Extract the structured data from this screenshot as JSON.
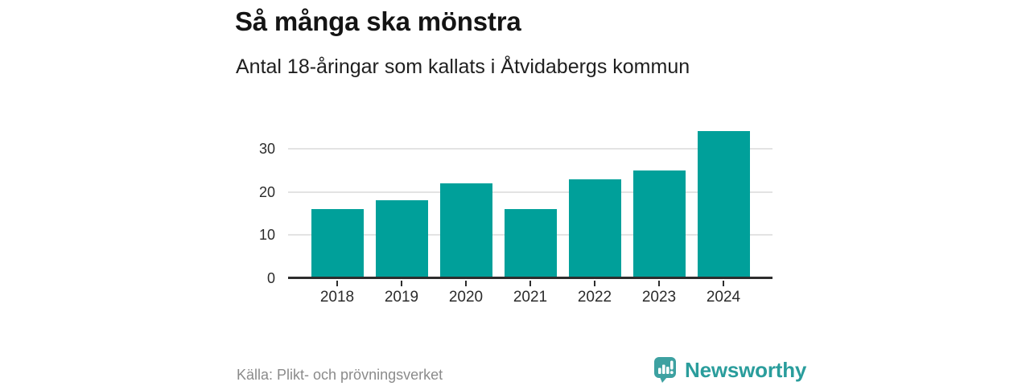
{
  "chart_data": {
    "type": "bar",
    "title": "Så många ska mönstra",
    "subtitle": "Antal 18-åringar som kallats i Åtvidabergs kommun",
    "categories": [
      "2018",
      "2019",
      "2020",
      "2021",
      "2022",
      "2023",
      "2024"
    ],
    "values": [
      16,
      18,
      22,
      16,
      23,
      25,
      34
    ],
    "xlabel": "",
    "ylabel": "",
    "yticks": [
      0,
      10,
      20,
      30
    ],
    "ylim": [
      0,
      36.5
    ],
    "grid": true,
    "legend": false,
    "legend_position": "none",
    "bar_color": "#00a09a",
    "gridline_color": "#e3e3e3",
    "axis_color": "#2d2d2d"
  },
  "footer": {
    "source": "Källa: Plikt- och prövningsverket",
    "brand": "Newsworthy",
    "brand_color": "#2a9d9c",
    "brand_icon_color": "#3da1a1",
    "brand_icon": "newsworthy-speech-bubble-bar-chart-icon"
  }
}
